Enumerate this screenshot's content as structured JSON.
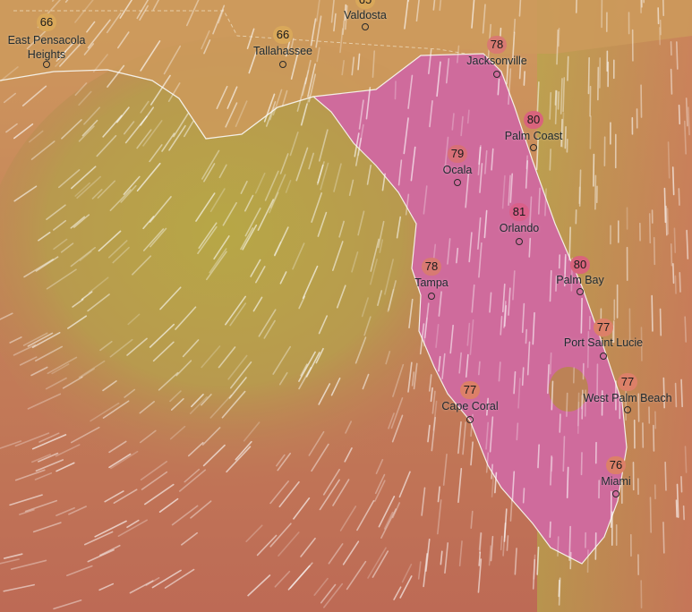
{
  "map": {
    "layer": "temperature",
    "overlay": "wind-particles",
    "colors": {
      "land_warm": "#c8875a",
      "gulf_olive": "#b3a148",
      "ocean_red": "#c06a58",
      "peninsula_pink": "#cf6a9a",
      "coastline": "#f4efe6"
    }
  },
  "cities": [
    {
      "name": "East Pensacola Heights",
      "temp": "66",
      "badge_color": "#d9a85a"
    },
    {
      "name": "Tallahassee",
      "temp": "66",
      "badge_color": "#d9a85a"
    },
    {
      "name": "Valdosta",
      "temp": "65",
      "badge_color": "#d9a85a"
    },
    {
      "name": "Jacksonville",
      "temp": "78",
      "badge_color": "#d87a72"
    },
    {
      "name": "Palm Coast",
      "temp": "80",
      "badge_color": "#d9647c"
    },
    {
      "name": "Ocala",
      "temp": "79",
      "badge_color": "#d87078"
    },
    {
      "name": "Orlando",
      "temp": "81",
      "badge_color": "#d9608a"
    },
    {
      "name": "Tampa",
      "temp": "78",
      "badge_color": "#d87a72"
    },
    {
      "name": "Palm Bay",
      "temp": "80",
      "badge_color": "#d9647c"
    },
    {
      "name": "Port Saint Lucie",
      "temp": "77",
      "badge_color": "#dc8068"
    },
    {
      "name": "West Palm Beach",
      "temp": "77",
      "badge_color": "#dc8068"
    },
    {
      "name": "Cape Coral",
      "temp": "77",
      "badge_color": "#dc8068"
    },
    {
      "name": "Miami",
      "temp": "76",
      "badge_color": "#dc8068"
    }
  ]
}
